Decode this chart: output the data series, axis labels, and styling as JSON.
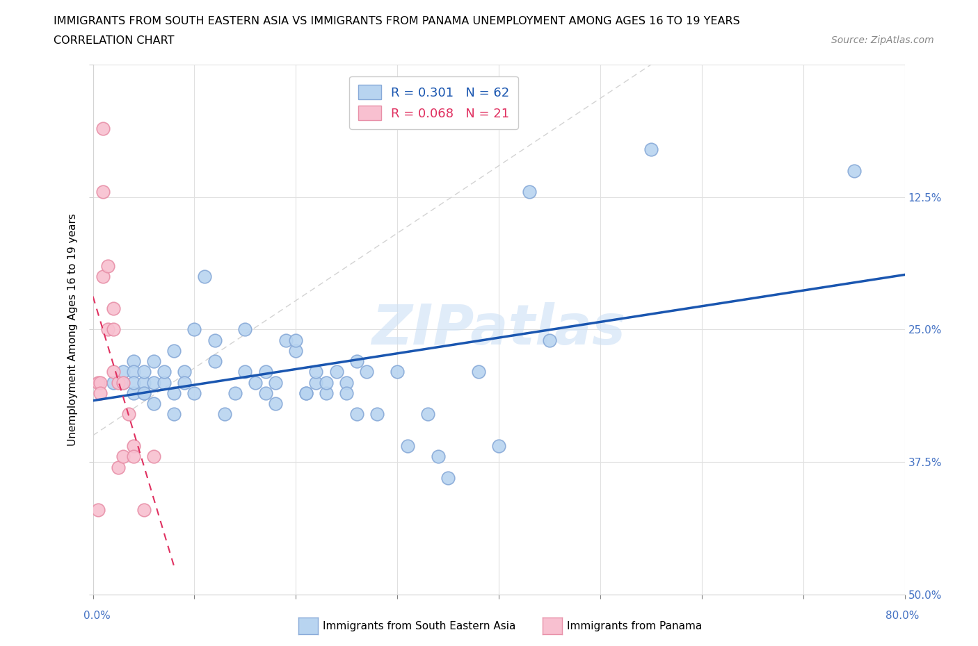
{
  "title_line1": "IMMIGRANTS FROM SOUTH EASTERN ASIA VS IMMIGRANTS FROM PANAMA UNEMPLOYMENT AMONG AGES 16 TO 19 YEARS",
  "title_line2": "CORRELATION CHART",
  "source_text": "Source: ZipAtlas.com",
  "ylabel": "Unemployment Among Ages 16 to 19 years",
  "xlim": [
    0,
    0.8
  ],
  "ylim": [
    0,
    0.5
  ],
  "xticks": [
    0.0,
    0.1,
    0.2,
    0.3,
    0.4,
    0.5,
    0.6,
    0.7,
    0.8
  ],
  "yticks": [
    0.0,
    0.125,
    0.25,
    0.375,
    0.5
  ],
  "right_ytick_labels": [
    "50.0%",
    "37.5%",
    "25.0%",
    "12.5%",
    ""
  ],
  "blue_R": 0.301,
  "blue_N": 62,
  "pink_R": 0.068,
  "pink_N": 21,
  "legend_label_blue": "Immigrants from South Eastern Asia",
  "legend_label_pink": "Immigrants from Panama",
  "blue_color": "#b8d4f0",
  "blue_edge": "#88aad8",
  "pink_color": "#f8c0d0",
  "pink_edge": "#e890a8",
  "blue_line_color": "#1a56b0",
  "pink_line_color": "#e03060",
  "right_axis_color": "#4472c4",
  "watermark": "ZIPatlas",
  "blue_dots_x": [
    0.02,
    0.03,
    0.03,
    0.04,
    0.04,
    0.04,
    0.04,
    0.05,
    0.05,
    0.05,
    0.05,
    0.06,
    0.06,
    0.06,
    0.07,
    0.07,
    0.08,
    0.08,
    0.08,
    0.09,
    0.09,
    0.1,
    0.1,
    0.11,
    0.12,
    0.12,
    0.13,
    0.14,
    0.15,
    0.15,
    0.16,
    0.17,
    0.17,
    0.18,
    0.18,
    0.19,
    0.2,
    0.2,
    0.21,
    0.21,
    0.22,
    0.22,
    0.23,
    0.23,
    0.24,
    0.25,
    0.25,
    0.26,
    0.26,
    0.27,
    0.28,
    0.3,
    0.31,
    0.33,
    0.34,
    0.35,
    0.38,
    0.4,
    0.43,
    0.45,
    0.55,
    0.75
  ],
  "blue_dots_y": [
    0.2,
    0.2,
    0.21,
    0.22,
    0.19,
    0.21,
    0.2,
    0.19,
    0.2,
    0.21,
    0.19,
    0.2,
    0.18,
    0.22,
    0.2,
    0.21,
    0.19,
    0.23,
    0.17,
    0.21,
    0.2,
    0.25,
    0.19,
    0.3,
    0.24,
    0.22,
    0.17,
    0.19,
    0.25,
    0.21,
    0.2,
    0.19,
    0.21,
    0.2,
    0.18,
    0.24,
    0.23,
    0.24,
    0.19,
    0.19,
    0.2,
    0.21,
    0.19,
    0.2,
    0.21,
    0.2,
    0.19,
    0.22,
    0.17,
    0.21,
    0.17,
    0.21,
    0.14,
    0.17,
    0.13,
    0.11,
    0.21,
    0.14,
    0.38,
    0.24,
    0.42,
    0.4
  ],
  "pink_dots_x": [
    0.005,
    0.005,
    0.007,
    0.007,
    0.01,
    0.01,
    0.01,
    0.015,
    0.015,
    0.02,
    0.02,
    0.02,
    0.025,
    0.025,
    0.03,
    0.03,
    0.035,
    0.04,
    0.04,
    0.05,
    0.06
  ],
  "pink_dots_y": [
    0.2,
    0.08,
    0.2,
    0.19,
    0.44,
    0.38,
    0.3,
    0.31,
    0.25,
    0.27,
    0.25,
    0.21,
    0.2,
    0.12,
    0.2,
    0.13,
    0.17,
    0.14,
    0.13,
    0.08,
    0.13
  ]
}
